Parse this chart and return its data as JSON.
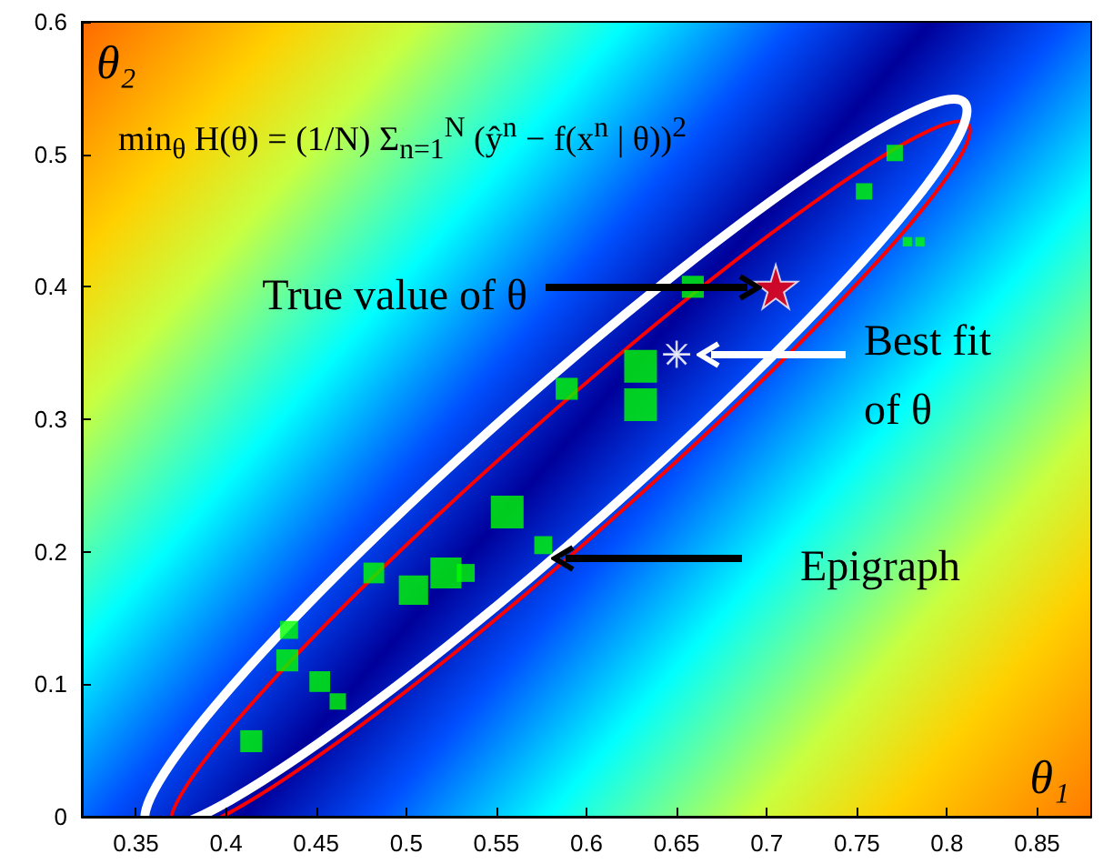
{
  "chart_data": {
    "type": "bubble",
    "xlabel": "θ₁",
    "ylabel": "θ₂",
    "xlim": [
      0.32,
      0.88
    ],
    "xticks": [
      0.35,
      0.4,
      0.45,
      0.5,
      0.55,
      0.6,
      0.65,
      0.7,
      0.75,
      0.8,
      0.85
    ],
    "ylim": [
      0,
      0.6
    ],
    "yticks": [
      0,
      0.1,
      0.2,
      0.3,
      0.4,
      0.5,
      0.6
    ],
    "grid": false,
    "series": [
      {
        "type": "bubble",
        "color": "#00ff00",
        "marker": "square",
        "x": [
          0.414,
          0.435,
          0.434,
          0.452,
          0.462,
          0.482,
          0.504,
          0.522,
          0.533,
          0.556,
          0.576,
          0.63,
          0.63,
          0.589,
          0.659,
          0.754,
          0.771,
          0.778,
          0.785
        ],
        "values": [
          0.057,
          0.141,
          0.118,
          0.102,
          0.087,
          0.184,
          0.171,
          0.184,
          0.184,
          0.23,
          0.205,
          0.34,
          0.311,
          0.323,
          0.4,
          0.472,
          0.501,
          0.434,
          0.434
        ],
        "sizes": [
          0.45,
          0.3,
          0.45,
          0.4,
          0.25,
          0.4,
          0.8,
          0.9,
          0.3,
          1,
          0.3,
          1,
          1,
          0.45,
          0.45,
          0.25,
          0.25,
          0.08,
          0.08
        ]
      },
      {
        "type": "scatter",
        "color": "#ff0000",
        "marker": "star",
        "x": [
          0.705
        ],
        "values": [
          0.4
        ]
      },
      {
        "type": "scatter",
        "color": "#ffffff",
        "marker": "cross",
        "x": [
          0.65
        ],
        "values": [
          0.349
        ]
      }
    ],
    "annotations": [
      "min$_{θ}$ H(θ) = (1/N) Σ$_{n=1}$$^{N}$ (ŷ$^{n}$ − f(x$^{n}$ | θ))$^{2}$",
      "True value of θ",
      "Best fit of θ",
      "Epigraph"
    ]
  }
}
